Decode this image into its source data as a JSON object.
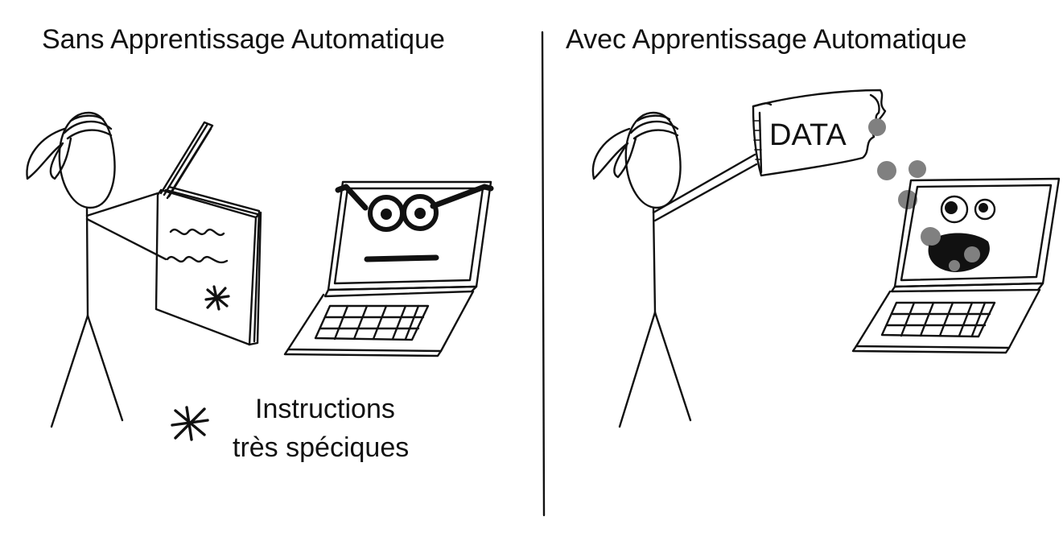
{
  "panels": {
    "left": {
      "title": "Sans Apprentissage Automatique",
      "note_line1": "Instructions",
      "note_line2": "très spéciques"
    },
    "right": {
      "title": "Avec Apprentissage Automatique",
      "bag_label": "DATA"
    }
  },
  "colors": {
    "ink": "#111111",
    "data_dots": "#808080",
    "background": "#ffffff"
  }
}
